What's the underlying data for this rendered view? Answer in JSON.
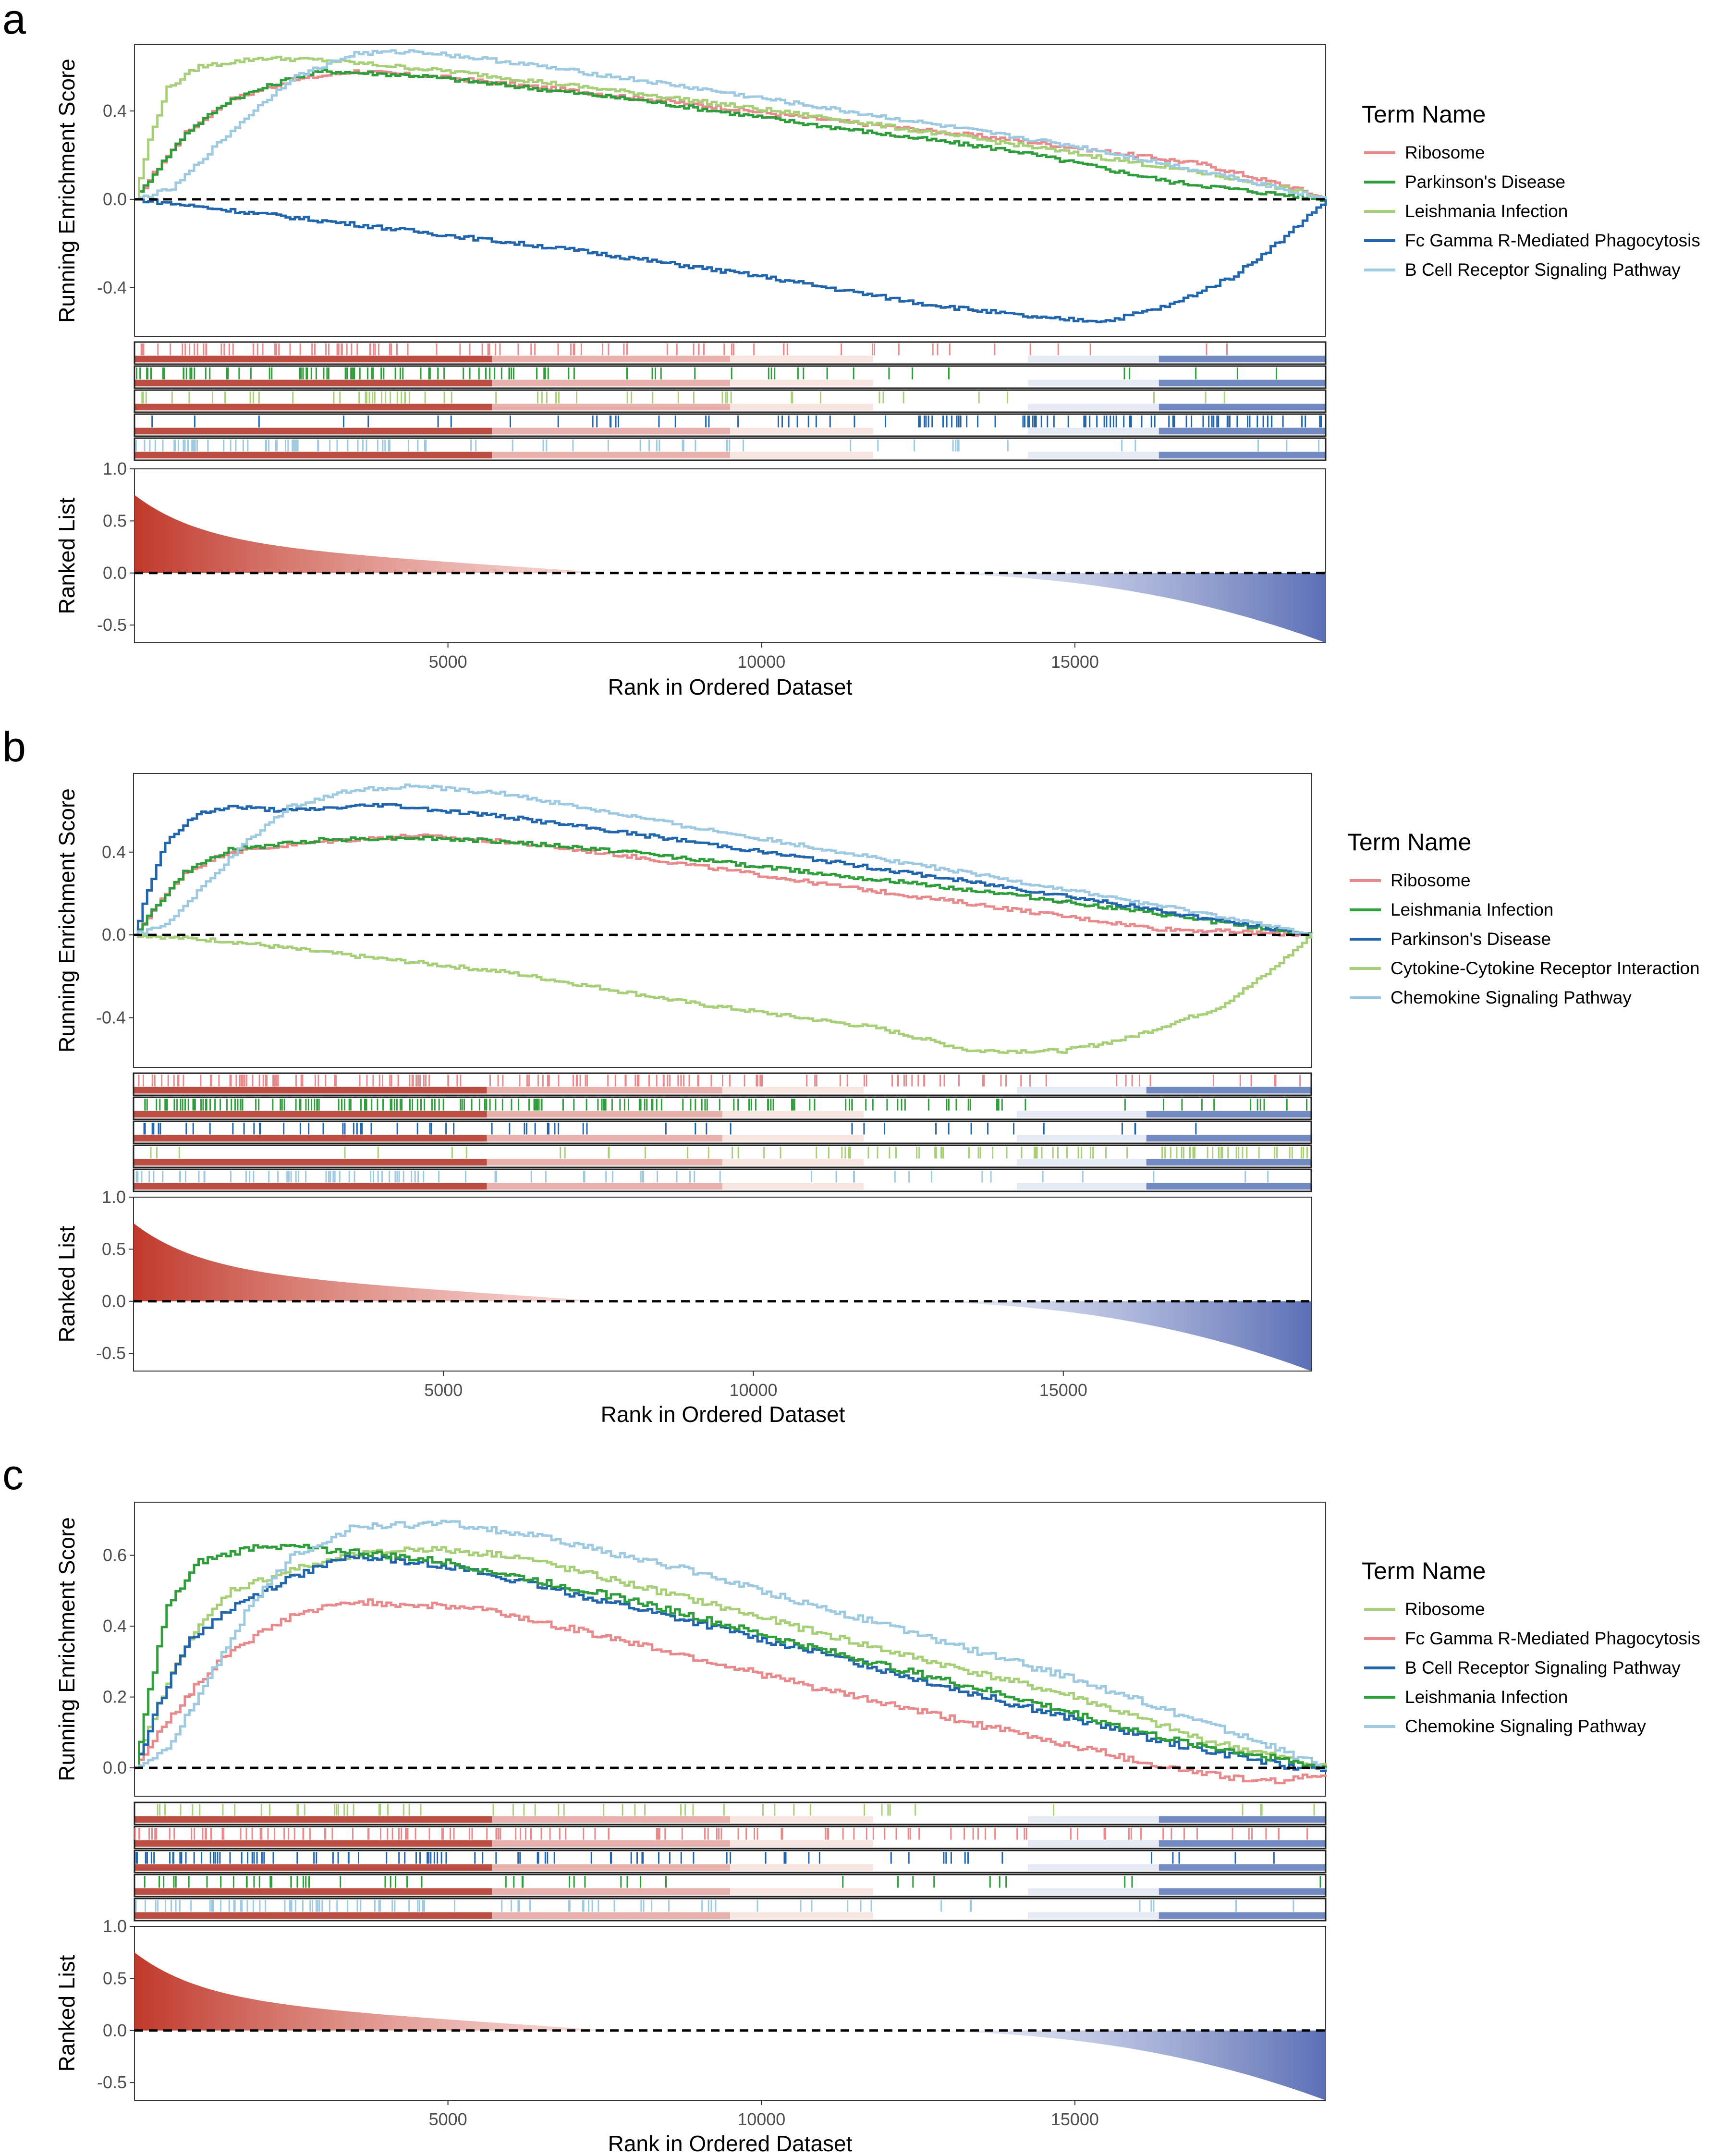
{
  "colors": {
    "pink": "#e8898c",
    "dark_green": "#2e9e3a",
    "light_green": "#a6cf78",
    "dark_blue": "#2166ac",
    "light_blue": "#9ecae1",
    "red_fill": "#c0392b",
    "blue_fill": "#5b6fb5"
  },
  "chart_data": [
    {
      "type": "line",
      "panel": "a",
      "ylabel": "Running Enrichment Score",
      "ylabel_rank": "Ranked List",
      "xlabel": "Rank in Ordered Dataset",
      "xlim": [
        0,
        19000
      ],
      "ylim": [
        -0.62,
        0.7
      ],
      "yticks": [
        "0.4",
        "0.0",
        "-0.4"
      ],
      "rank_yticks": [
        "1.0",
        "0.5",
        "0.0",
        "-0.5"
      ],
      "xticks": [
        "5000",
        "10000",
        "15000"
      ],
      "legend_title": "Term Name",
      "series": [
        {
          "name": "Ribosome",
          "color": "#e8898c",
          "points": [
            [
              0,
              0
            ],
            [
              300,
              0.12
            ],
            [
              800,
              0.3
            ],
            [
              1500,
              0.45
            ],
            [
              2500,
              0.54
            ],
            [
              3500,
              0.58
            ],
            [
              5000,
              0.55
            ],
            [
              8000,
              0.46
            ],
            [
              11000,
              0.36
            ],
            [
              14000,
              0.27
            ],
            [
              17000,
              0.16
            ],
            [
              18500,
              0.05
            ],
            [
              19000,
              0
            ]
          ]
        },
        {
          "name": "Parkinson's Disease",
          "color": "#2e9e3a",
          "points": [
            [
              0,
              0
            ],
            [
              300,
              0.12
            ],
            [
              800,
              0.3
            ],
            [
              1500,
              0.45
            ],
            [
              2500,
              0.55
            ],
            [
              3000,
              0.58
            ],
            [
              4500,
              0.56
            ],
            [
              8000,
              0.45
            ],
            [
              11000,
              0.33
            ],
            [
              14000,
              0.22
            ],
            [
              16500,
              0.08
            ],
            [
              18000,
              0.03
            ],
            [
              19000,
              0
            ]
          ]
        },
        {
          "name": "Leishmania Infection",
          "color": "#a6cf78",
          "points": [
            [
              0,
              0
            ],
            [
              200,
              0.25
            ],
            [
              500,
              0.5
            ],
            [
              1000,
              0.6
            ],
            [
              2000,
              0.64
            ],
            [
              3000,
              0.63
            ],
            [
              5000,
              0.58
            ],
            [
              8000,
              0.48
            ],
            [
              11000,
              0.37
            ],
            [
              14000,
              0.25
            ],
            [
              17000,
              0.12
            ],
            [
              18500,
              0.04
            ],
            [
              19000,
              0
            ]
          ]
        },
        {
          "name": "Fc Gamma R-Mediated Phagocytosis",
          "color": "#2166ac",
          "points": [
            [
              0,
              0
            ],
            [
              1500,
              -0.05
            ],
            [
              4000,
              -0.13
            ],
            [
              7000,
              -0.23
            ],
            [
              10000,
              -0.35
            ],
            [
              12500,
              -0.47
            ],
            [
              14500,
              -0.54
            ],
            [
              15500,
              -0.55
            ],
            [
              16500,
              -0.48
            ],
            [
              17500,
              -0.35
            ],
            [
              18300,
              -0.18
            ],
            [
              19000,
              0
            ]
          ]
        },
        {
          "name": "B Cell Receptor Signaling Pathway",
          "color": "#9ecae1",
          "points": [
            [
              0,
              0
            ],
            [
              600,
              0.05
            ],
            [
              1200,
              0.22
            ],
            [
              1800,
              0.38
            ],
            [
              2500,
              0.55
            ],
            [
              3500,
              0.66
            ],
            [
              4500,
              0.67
            ],
            [
              6000,
              0.62
            ],
            [
              9000,
              0.5
            ],
            [
              12000,
              0.37
            ],
            [
              15000,
              0.24
            ],
            [
              17500,
              0.1
            ],
            [
              19000,
              0
            ]
          ]
        }
      ],
      "hit_rows": [
        {
          "color": "#e8898c",
          "density": [
            0.55,
            0.3,
            0.15,
            0.05
          ]
        },
        {
          "color": "#2e9e3a",
          "density": [
            0.55,
            0.3,
            0.12,
            0.05
          ]
        },
        {
          "color": "#a6cf78",
          "density": [
            0.35,
            0.2,
            0.1,
            0.03
          ]
        },
        {
          "color": "#2166ac",
          "density": [
            0.05,
            0.15,
            0.3,
            0.6
          ]
        },
        {
          "color": "#9ecae1",
          "density": [
            0.6,
            0.2,
            0.1,
            0.05
          ]
        }
      ]
    },
    {
      "type": "line",
      "panel": "b",
      "ylabel": "Running Enrichment Score",
      "ylabel_rank": "Ranked List",
      "xlabel": "Rank in Ordered Dataset",
      "xlim": [
        0,
        19000
      ],
      "ylim": [
        -0.64,
        0.78
      ],
      "yticks": [
        "0.4",
        "0.0",
        "-0.4"
      ],
      "rank_yticks": [
        "1.0",
        "0.5",
        "0.0",
        "-0.5"
      ],
      "xticks": [
        "5000",
        "10000",
        "15000"
      ],
      "legend_title": "Term Name",
      "series": [
        {
          "name": "Ribosome",
          "color": "#e8898c",
          "points": [
            [
              0,
              0
            ],
            [
              300,
              0.12
            ],
            [
              800,
              0.3
            ],
            [
              1500,
              0.4
            ],
            [
              3000,
              0.45
            ],
            [
              4500,
              0.48
            ],
            [
              6000,
              0.45
            ],
            [
              8000,
              0.38
            ],
            [
              11000,
              0.25
            ],
            [
              14000,
              0.13
            ],
            [
              16500,
              0.03
            ],
            [
              19000,
              0
            ]
          ]
        },
        {
          "name": "Leishmania Infection",
          "color": "#2e9e3a",
          "points": [
            [
              0,
              0
            ],
            [
              300,
              0.12
            ],
            [
              800,
              0.3
            ],
            [
              1500,
              0.41
            ],
            [
              3000,
              0.46
            ],
            [
              4500,
              0.47
            ],
            [
              6000,
              0.45
            ],
            [
              8000,
              0.4
            ],
            [
              11000,
              0.3
            ],
            [
              14000,
              0.2
            ],
            [
              16500,
              0.1
            ],
            [
              19000,
              0
            ]
          ]
        },
        {
          "name": "Parkinson's Disease",
          "color": "#2166ac",
          "points": [
            [
              0,
              0
            ],
            [
              200,
              0.2
            ],
            [
              500,
              0.45
            ],
            [
              1000,
              0.58
            ],
            [
              1500,
              0.62
            ],
            [
              2500,
              0.6
            ],
            [
              4000,
              0.63
            ],
            [
              6000,
              0.57
            ],
            [
              9000,
              0.45
            ],
            [
              12000,
              0.32
            ],
            [
              15000,
              0.19
            ],
            [
              17500,
              0.07
            ],
            [
              19000,
              0
            ]
          ]
        },
        {
          "name": "Cytokine-Cytokine Receptor Interaction",
          "color": "#a6cf78",
          "points": [
            [
              0,
              0
            ],
            [
              1500,
              -0.03
            ],
            [
              3500,
              -0.1
            ],
            [
              6000,
              -0.18
            ],
            [
              9000,
              -0.33
            ],
            [
              12000,
              -0.45
            ],
            [
              13500,
              -0.56
            ],
            [
              15000,
              -0.56
            ],
            [
              16000,
              -0.5
            ],
            [
              17500,
              -0.35
            ],
            [
              18300,
              -0.18
            ],
            [
              19000,
              0
            ]
          ]
        },
        {
          "name": "Chemokine Signaling Pathway",
          "color": "#9ecae1",
          "points": [
            [
              0,
              0
            ],
            [
              500,
              0.05
            ],
            [
              1000,
              0.2
            ],
            [
              1800,
              0.45
            ],
            [
              2500,
              0.62
            ],
            [
              3500,
              0.7
            ],
            [
              4500,
              0.72
            ],
            [
              6000,
              0.68
            ],
            [
              9000,
              0.52
            ],
            [
              12000,
              0.37
            ],
            [
              15000,
              0.22
            ],
            [
              17500,
              0.09
            ],
            [
              19000,
              0
            ]
          ]
        }
      ],
      "hit_rows": [
        {
          "color": "#e8898c",
          "density": [
            0.7,
            0.5,
            0.35,
            0.15
          ]
        },
        {
          "color": "#2e9e3a",
          "density": [
            0.8,
            0.6,
            0.4,
            0.15
          ]
        },
        {
          "color": "#2166ac",
          "density": [
            0.3,
            0.2,
            0.1,
            0.05
          ]
        },
        {
          "color": "#a6cf78",
          "density": [
            0.05,
            0.1,
            0.3,
            0.5
          ]
        },
        {
          "color": "#9ecae1",
          "density": [
            0.5,
            0.2,
            0.1,
            0.05
          ]
        }
      ]
    },
    {
      "type": "line",
      "panel": "c",
      "ylabel": "Running Enrichment Score",
      "ylabel_rank": "Ranked List",
      "xlabel": "Rank in Ordered Dataset",
      "xlim": [
        0,
        19000
      ],
      "ylim": [
        -0.08,
        0.75
      ],
      "yticks": [
        "0.6",
        "0.4",
        "0.2",
        "0.0"
      ],
      "rank_yticks": [
        "1.0",
        "0.5",
        "0.0",
        "-0.5"
      ],
      "xticks": [
        "5000",
        "10000",
        "15000"
      ],
      "legend_title": "Term Name",
      "series": [
        {
          "name": "Ribosome",
          "color": "#a6cf78",
          "points": [
            [
              0,
              0
            ],
            [
              300,
              0.15
            ],
            [
              800,
              0.35
            ],
            [
              1500,
              0.5
            ],
            [
              2500,
              0.56
            ],
            [
              3500,
              0.6
            ],
            [
              4500,
              0.62
            ],
            [
              6000,
              0.6
            ],
            [
              9000,
              0.47
            ],
            [
              12000,
              0.33
            ],
            [
              15000,
              0.2
            ],
            [
              17000,
              0.08
            ],
            [
              19000,
              0
            ]
          ]
        },
        {
          "name": "Fc Gamma R-Mediated Phagocytosis",
          "color": "#e8898c",
          "points": [
            [
              0,
              0
            ],
            [
              300,
              0.08
            ],
            [
              800,
              0.2
            ],
            [
              1500,
              0.33
            ],
            [
              2500,
              0.43
            ],
            [
              3500,
              0.47
            ],
            [
              5500,
              0.45
            ],
            [
              8000,
              0.35
            ],
            [
              11000,
              0.22
            ],
            [
              14000,
              0.1
            ],
            [
              16500,
              0.0
            ],
            [
              18000,
              -0.04
            ],
            [
              19000,
              -0.02
            ]
          ]
        },
        {
          "name": "B Cell Receptor Signaling Pathway",
          "color": "#2166ac",
          "points": [
            [
              0,
              0
            ],
            [
              300,
              0.15
            ],
            [
              800,
              0.35
            ],
            [
              1500,
              0.45
            ],
            [
              2500,
              0.54
            ],
            [
              3500,
              0.6
            ],
            [
              5000,
              0.57
            ],
            [
              8000,
              0.45
            ],
            [
              11000,
              0.32
            ],
            [
              14000,
              0.18
            ],
            [
              16500,
              0.07
            ],
            [
              18500,
              0.0
            ],
            [
              19000,
              0
            ]
          ]
        },
        {
          "name": "Leishmania Infection",
          "color": "#2e9e3a",
          "points": [
            [
              0,
              0
            ],
            [
              200,
              0.2
            ],
            [
              500,
              0.45
            ],
            [
              1000,
              0.58
            ],
            [
              2000,
              0.63
            ],
            [
              3500,
              0.61
            ],
            [
              5000,
              0.58
            ],
            [
              8000,
              0.47
            ],
            [
              11000,
              0.33
            ],
            [
              14000,
              0.2
            ],
            [
              16500,
              0.08
            ],
            [
              19000,
              0
            ]
          ]
        },
        {
          "name": "Chemokine Signaling Pathway",
          "color": "#9ecae1",
          "points": [
            [
              0,
              0
            ],
            [
              500,
              0.05
            ],
            [
              1000,
              0.2
            ],
            [
              1800,
              0.45
            ],
            [
              2500,
              0.6
            ],
            [
              3500,
              0.68
            ],
            [
              5000,
              0.69
            ],
            [
              6500,
              0.65
            ],
            [
              9000,
              0.55
            ],
            [
              12000,
              0.4
            ],
            [
              15000,
              0.25
            ],
            [
              17500,
              0.1
            ],
            [
              19000,
              0
            ]
          ]
        }
      ],
      "hit_rows": [
        {
          "color": "#a6cf78",
          "density": [
            0.3,
            0.15,
            0.1,
            0.05
          ]
        },
        {
          "color": "#e8898c",
          "density": [
            0.55,
            0.4,
            0.3,
            0.2
          ]
        },
        {
          "color": "#2166ac",
          "density": [
            0.5,
            0.3,
            0.15,
            0.05
          ]
        },
        {
          "color": "#2e9e3a",
          "density": [
            0.3,
            0.12,
            0.08,
            0.03
          ]
        },
        {
          "color": "#9ecae1",
          "density": [
            0.6,
            0.25,
            0.1,
            0.05
          ]
        }
      ]
    }
  ]
}
